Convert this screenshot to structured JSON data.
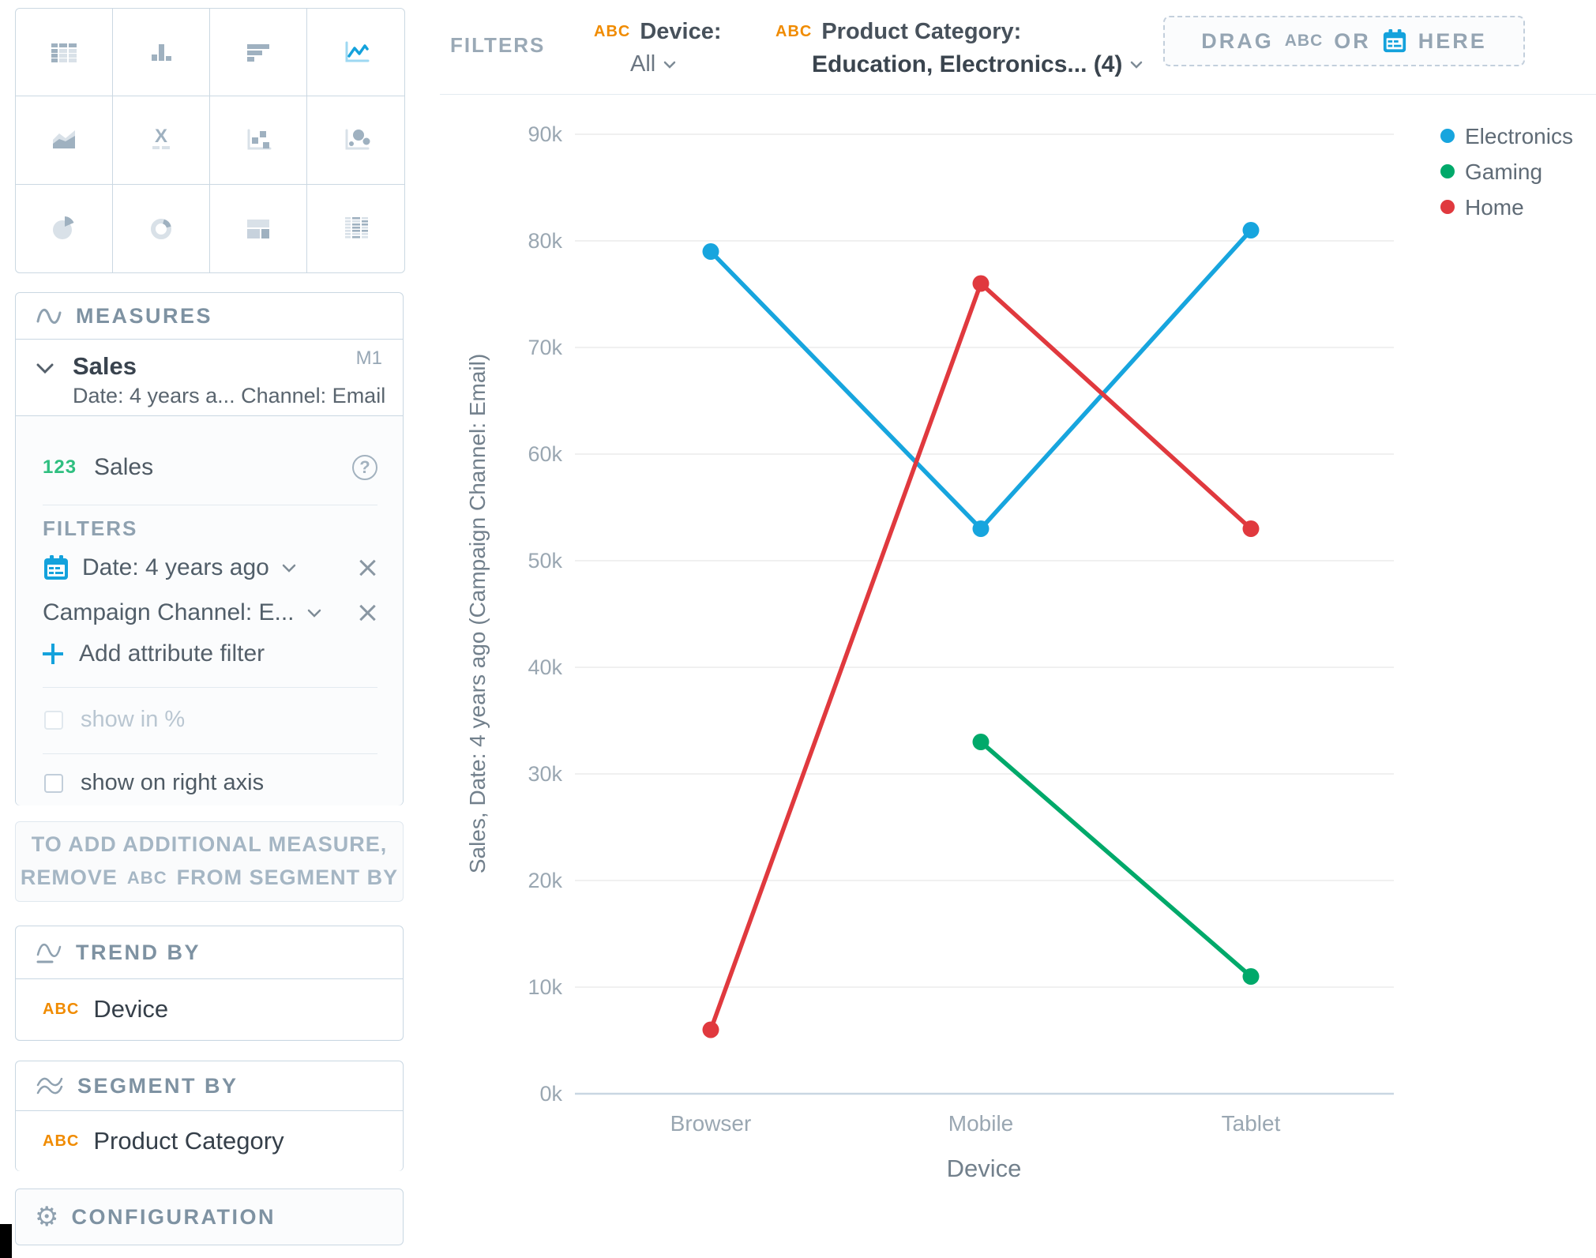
{
  "picker": {
    "items": [
      {
        "name": "table",
        "icon": "table-chart-icon",
        "selected": false
      },
      {
        "name": "column",
        "icon": "column-chart-icon",
        "selected": false
      },
      {
        "name": "bar",
        "icon": "bar-chart-icon",
        "selected": false
      },
      {
        "name": "line",
        "icon": "line-chart-icon",
        "selected": true
      },
      {
        "name": "area",
        "icon": "area-chart-icon",
        "selected": false
      },
      {
        "name": "headline",
        "icon": "headline-icon",
        "selected": false
      },
      {
        "name": "scatter",
        "icon": "scatter-plot-icon",
        "selected": false
      },
      {
        "name": "bubble",
        "icon": "bubble-chart-icon",
        "selected": false
      },
      {
        "name": "pie",
        "icon": "pie-chart-icon",
        "selected": false
      },
      {
        "name": "donut",
        "icon": "donut-chart-icon",
        "selected": false
      },
      {
        "name": "treemap",
        "icon": "treemap-icon",
        "selected": false
      },
      {
        "name": "heatmap",
        "icon": "heatmap-icon",
        "selected": false
      }
    ]
  },
  "measures": {
    "title": "MEASURES",
    "item": {
      "name": "Sales",
      "badge": "M1",
      "subtitle": "Date: 4 years a... Channel: Email"
    },
    "row": {
      "badge": "123",
      "label": "Sales"
    },
    "filters_label": "FILTERS",
    "date_filter": "Date: 4 years ago",
    "attr_filter": "Campaign Channel: E...",
    "add_filter": "Add attribute filter",
    "show_pct": "show in %",
    "show_right": "show on right axis"
  },
  "note": {
    "line1": "TO ADD ADDITIONAL MEASURE,",
    "line2_pre": "REMOVE",
    "line2_badge": "ABC",
    "line2_post": "FROM SEGMENT BY"
  },
  "trend": {
    "title": "TREND BY",
    "badge": "ABC",
    "label": "Device"
  },
  "segment": {
    "title": "SEGMENT BY",
    "badge": "ABC",
    "label": "Product Category"
  },
  "config": {
    "title": "CONFIGURATION"
  },
  "bar": {
    "label": "FILTERS",
    "device": {
      "badge": "ABC",
      "name": "Device:",
      "value": "All"
    },
    "category": {
      "badge": "ABC",
      "name": "Product Category:",
      "value": "Education, Electronics... (4)"
    },
    "drop": {
      "drag": "DRAG",
      "abc": "ABC",
      "or": "OR",
      "here": "HERE"
    }
  },
  "colors": {
    "accent_blue": "#14A2DC",
    "accent_orange": "#F08B00",
    "measure_green": "#2FBF80",
    "grid_line": "#ECECEC",
    "axis_line": "#C9D7E2",
    "axis_text": "#9AA7B2"
  },
  "chart_data": {
    "type": "line",
    "categories": [
      "Browser",
      "Mobile",
      "Tablet"
    ],
    "series": [
      {
        "name": "Electronics",
        "color": "#17A5DE",
        "values": [
          79000,
          53000,
          81000
        ]
      },
      {
        "name": "Gaming",
        "color": "#00A96A",
        "values": [
          null,
          33000,
          11000
        ]
      },
      {
        "name": "Home",
        "color": "#E0393E",
        "values": [
          6000,
          76000,
          53000
        ]
      }
    ],
    "title": "",
    "xlabel": "Device",
    "ylabel": "Sales, Date: 4 years ago (Campaign Channel: Email)",
    "ylim": [
      0,
      90000
    ],
    "ytick_step": 10000,
    "ytick_format": "k",
    "grid": true,
    "legend_position": "top-right"
  }
}
